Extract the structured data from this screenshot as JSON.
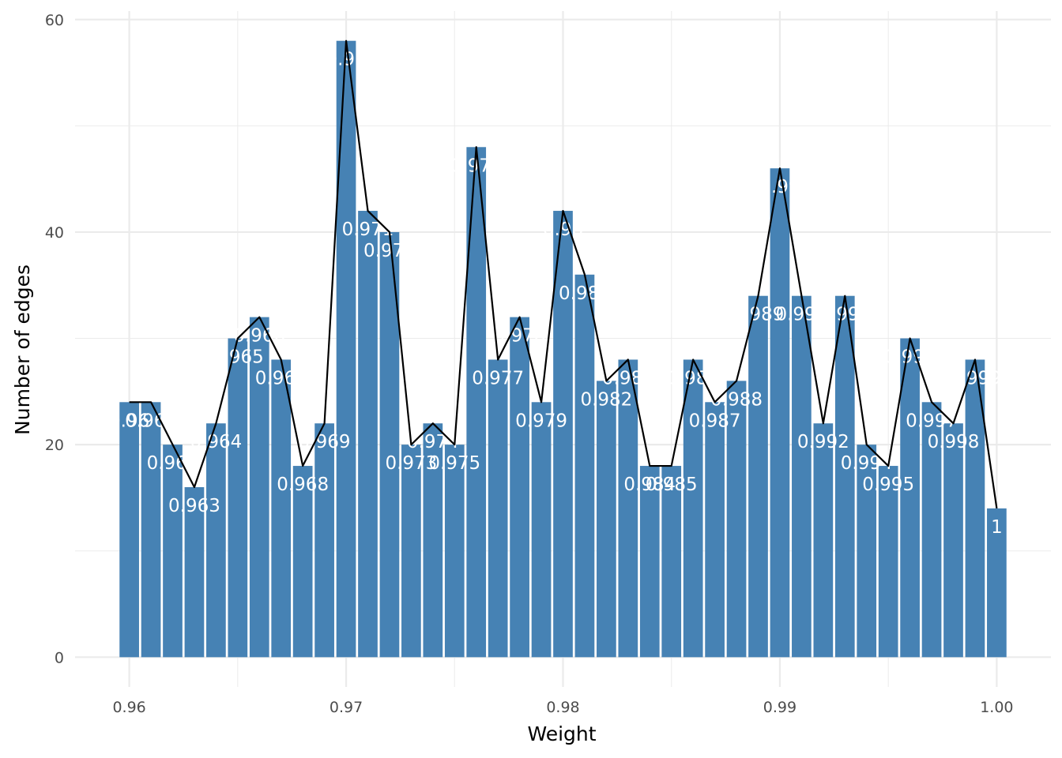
{
  "chart_data": {
    "type": "bar",
    "title": "",
    "xlabel": "Weight",
    "ylabel": "Number of edges",
    "xlim": [
      0.9575,
      1.0025
    ],
    "ylim": [
      -2.8,
      60.8
    ],
    "x_ticks": [
      "0.96",
      "0.97",
      "0.98",
      "0.99",
      "1.00"
    ],
    "y_ticks": [
      "0",
      "20",
      "40",
      "60"
    ],
    "grid": true,
    "legend": "none",
    "x": [
      0.96,
      0.961,
      0.962,
      0.963,
      0.964,
      0.965,
      0.966,
      0.967,
      0.968,
      0.969,
      0.97,
      0.971,
      0.972,
      0.973,
      0.974,
      0.975,
      0.976,
      0.977,
      0.978,
      0.979,
      0.98,
      0.981,
      0.982,
      0.983,
      0.984,
      0.985,
      0.986,
      0.987,
      0.988,
      0.989,
      0.99,
      0.991,
      0.992,
      0.993,
      0.994,
      0.995,
      0.996,
      0.997,
      0.998,
      0.999,
      1.0
    ],
    "values": [
      24,
      24,
      20,
      16,
      22,
      30,
      32,
      28,
      18,
      22,
      58,
      42,
      40,
      20,
      22,
      20,
      48,
      28,
      32,
      24,
      42,
      36,
      26,
      28,
      18,
      18,
      28,
      24,
      26,
      34,
      46,
      34,
      22,
      34,
      20,
      18,
      30,
      24,
      22,
      28,
      14
    ],
    "bar_labels": [
      "0.96",
      "0.961",
      "0.962",
      "0.963",
      "0.964",
      "0.965",
      "0.966",
      "0.967",
      "0.968",
      "0.969",
      "0.97",
      "0.971",
      "0.972",
      "0.973",
      "0.974",
      "0.975",
      "0.976",
      "0.977",
      "0.978",
      "0.979",
      "0.98",
      "0.981",
      "0.982",
      "0.983",
      "0.984",
      "0.985",
      "0.986",
      "0.987",
      "0.988",
      "0.989",
      "0.99",
      "0.991",
      "0.992",
      "0.993",
      "0.994",
      "0.995",
      "0.996",
      "0.997",
      "0.998",
      "0.999",
      "1"
    ],
    "colors": {
      "bar": "#4682B4",
      "line": "#000000",
      "grid": "#EBEBEB",
      "label": "#FFFFFF"
    }
  }
}
